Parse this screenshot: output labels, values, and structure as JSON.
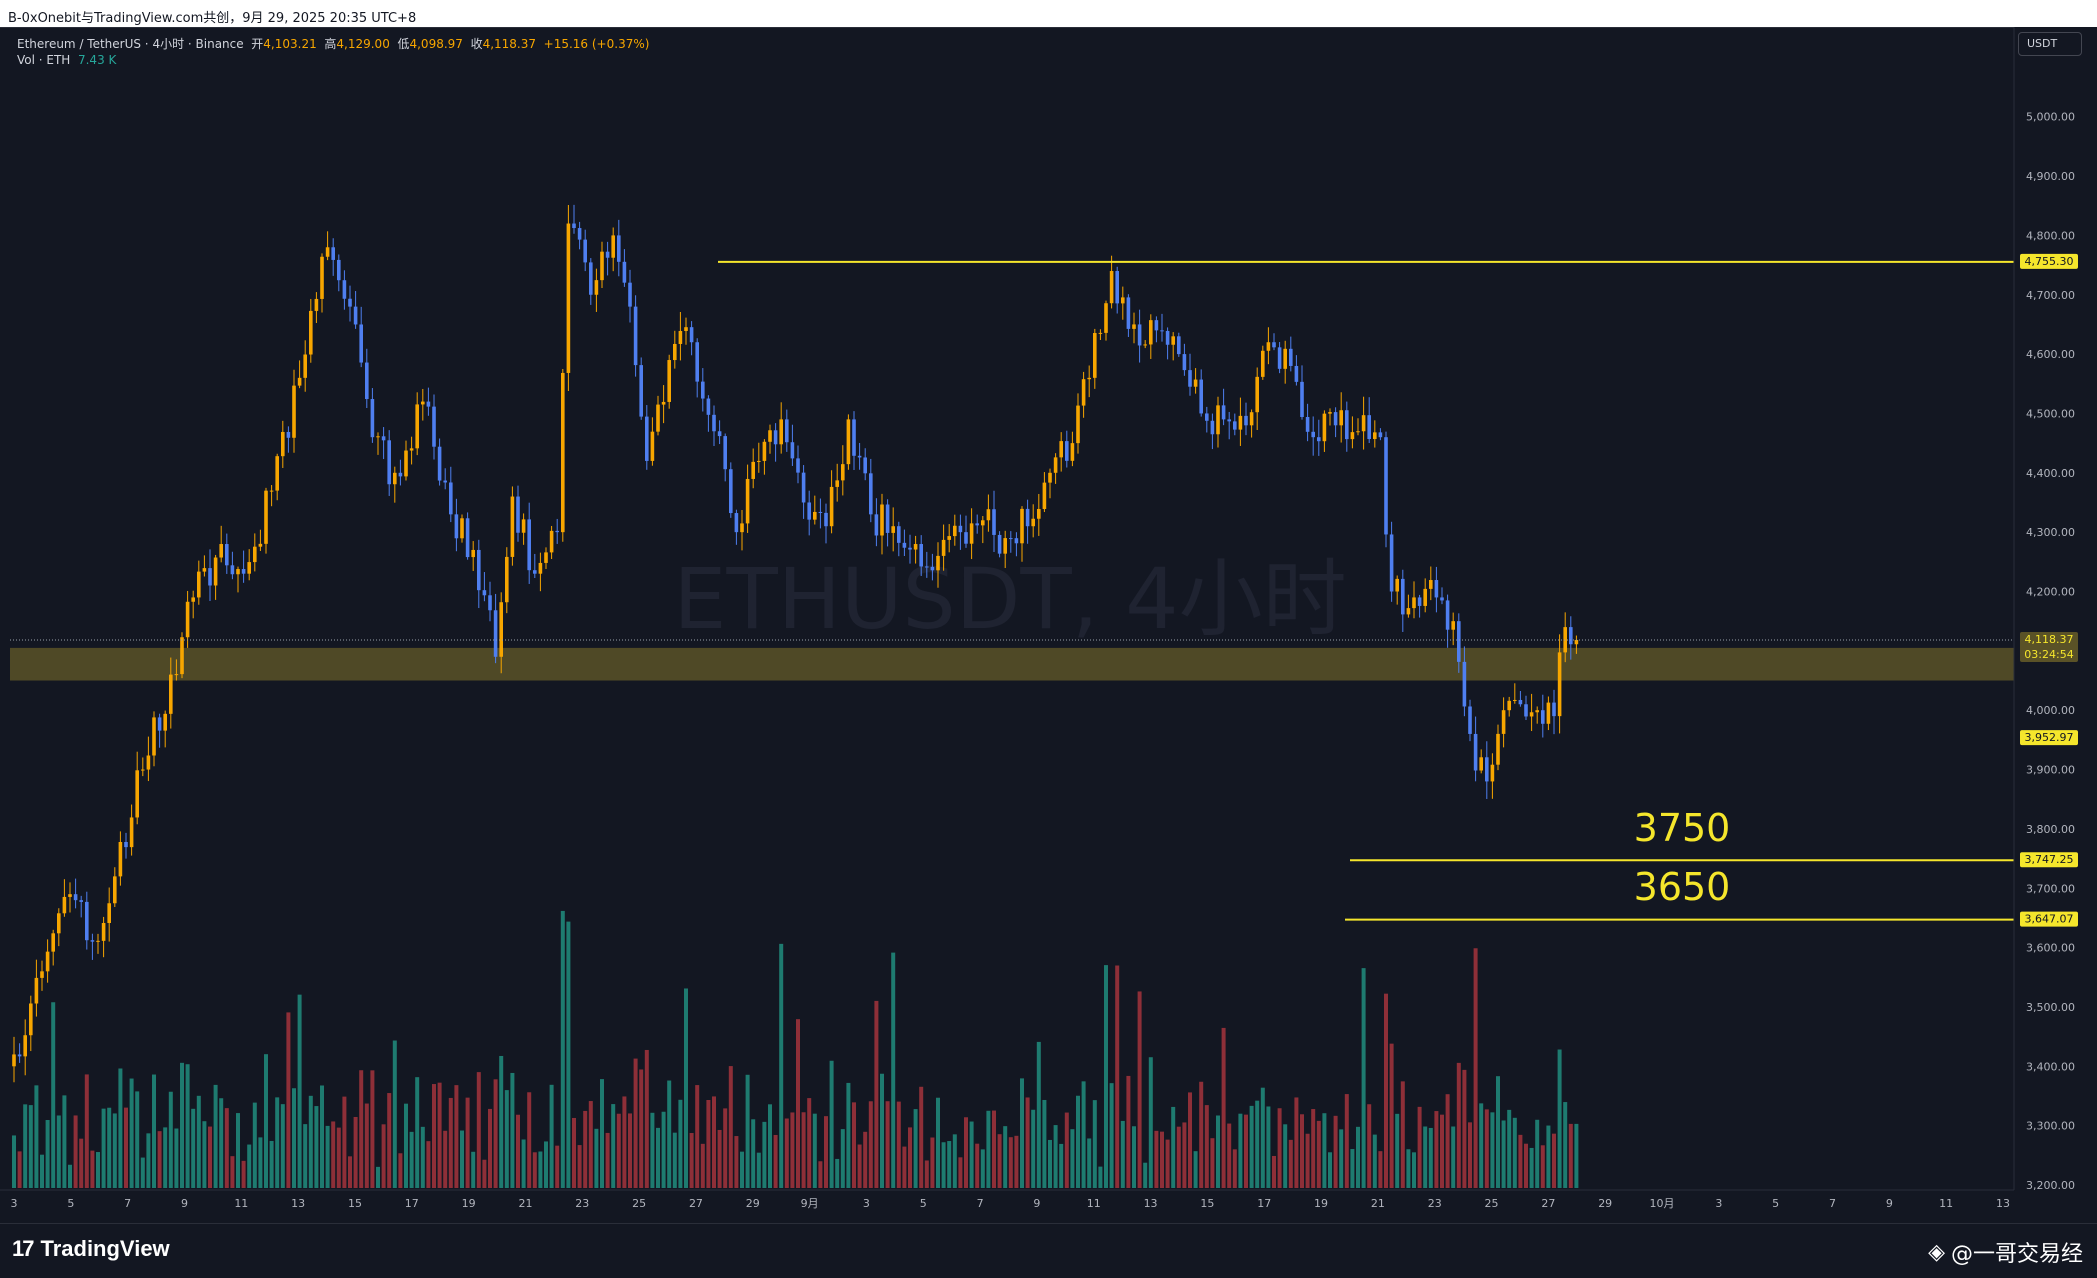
{
  "topbar": {
    "title": "B-0xOnebit与TradingView.com共创，9月 29, 2025 20:35 UTC+8"
  },
  "header": {
    "symbol": "Ethereum / TetherUS · 4小时 · Binance",
    "open_label": "开",
    "open": "4,103.21",
    "high_label": "高",
    "high": "4,129.00",
    "low_label": "低",
    "low": "4,098.97",
    "close_label": "收",
    "close": "4,118.37",
    "change": "+15.16 (+0.37%)",
    "vol_label": "Vol · ETH",
    "vol_value": "7.43 K"
  },
  "currency": "USDT",
  "watermark": "ETHUSDT, 4小时",
  "annotations": {
    "level1": "3750",
    "level2": "3650"
  },
  "colors": {
    "up": "#f7a600",
    "down": "#4f7ff0",
    "vol_up": "#1e7b70",
    "vol_down": "#8e2f38",
    "line": "#f5e62c",
    "zone": "#5a5227",
    "bg": "#131722"
  },
  "brand": {
    "name": "TradingView",
    "author": "@一哥交易经"
  },
  "chart_data": {
    "type": "candlestick",
    "y_ticks": [
      "5,000.00",
      "4,900.00",
      "4,800.00",
      "4,700.00",
      "4,600.00",
      "4,500.00",
      "4,400.00",
      "4,300.00",
      "4,200.00",
      "4,000.00",
      "3,900.00",
      "3,800.00",
      "3,700.00",
      "3,600.00",
      "3,500.00",
      "3,400.00",
      "3,300.00",
      "3,200.00"
    ],
    "y_range": [
      3200,
      5080
    ],
    "x_ticks": [
      "3",
      "5",
      "7",
      "9",
      "11",
      "13",
      "15",
      "17",
      "19",
      "21",
      "23",
      "25",
      "27",
      "29",
      "9月",
      "3",
      "5",
      "7",
      "9",
      "11",
      "13",
      "15",
      "17",
      "19",
      "21",
      "23",
      "25",
      "27",
      "29",
      "10月",
      "3",
      "5",
      "7",
      "9",
      "11",
      "13"
    ],
    "price_badges": [
      {
        "label": "4,755.30",
        "value": 4755.3
      },
      {
        "label": "3,952.97",
        "value": 3952.97
      },
      {
        "label": "3,747.25",
        "value": 3747.25
      },
      {
        "label": "3,647.07",
        "value": 3647.07
      }
    ],
    "current_price": {
      "label": "4,118.37",
      "countdown": "03:24:54",
      "value": 4118.37
    },
    "horizontal_lines": [
      4755.3,
      3747.25,
      3647.07
    ],
    "support_zone": [
      4050,
      4105
    ],
    "price_anchors": [
      [
        0,
        3420
      ],
      [
        5,
        3560
      ],
      [
        10,
        3690
      ],
      [
        14,
        3610
      ],
      [
        18,
        3720
      ],
      [
        23,
        3900
      ],
      [
        28,
        4060
      ],
      [
        32,
        4190
      ],
      [
        37,
        4280
      ],
      [
        41,
        4230
      ],
      [
        46,
        4370
      ],
      [
        51,
        4560
      ],
      [
        56,
        4780
      ],
      [
        60,
        4680
      ],
      [
        64,
        4460
      ],
      [
        68,
        4400
      ],
      [
        73,
        4520
      ],
      [
        78,
        4330
      ],
      [
        82,
        4270
      ],
      [
        86,
        4090
      ],
      [
        89,
        4360
      ],
      [
        93,
        4230
      ],
      [
        97,
        4300
      ],
      [
        99,
        4820
      ],
      [
        103,
        4700
      ],
      [
        107,
        4800
      ],
      [
        110,
        4680
      ],
      [
        113,
        4420
      ],
      [
        117,
        4590
      ],
      [
        121,
        4620
      ],
      [
        125,
        4470
      ],
      [
        129,
        4300
      ],
      [
        133,
        4420
      ],
      [
        137,
        4490
      ],
      [
        141,
        4350
      ],
      [
        145,
        4310
      ],
      [
        149,
        4490
      ],
      [
        153,
        4330
      ],
      [
        157,
        4310
      ],
      [
        161,
        4280
      ],
      [
        165,
        4260
      ],
      [
        169,
        4300
      ],
      [
        173,
        4320
      ],
      [
        177,
        4290
      ],
      [
        181,
        4310
      ],
      [
        185,
        4400
      ],
      [
        189,
        4450
      ],
      [
        192,
        4560
      ],
      [
        196,
        4740
      ],
      [
        200,
        4650
      ],
      [
        204,
        4640
      ],
      [
        208,
        4600
      ],
      [
        212,
        4500
      ],
      [
        216,
        4490
      ],
      [
        220,
        4480
      ],
      [
        224,
        4620
      ],
      [
        228,
        4580
      ],
      [
        232,
        4460
      ],
      [
        236,
        4480
      ],
      [
        240,
        4470
      ],
      [
        244,
        4460
      ],
      [
        246,
        4200
      ],
      [
        250,
        4190
      ],
      [
        254,
        4190
      ],
      [
        257,
        4150
      ],
      [
        260,
        3960
      ],
      [
        263,
        3880
      ],
      [
        266,
        4000
      ],
      [
        269,
        4010
      ],
      [
        272,
        4000
      ],
      [
        275,
        3990
      ],
      [
        277,
        4140
      ],
      [
        279,
        4118.37
      ]
    ]
  }
}
